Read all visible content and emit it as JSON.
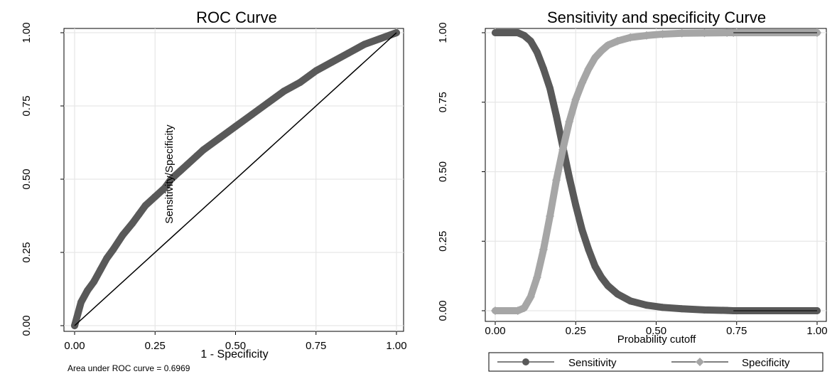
{
  "chart_data": [
    {
      "type": "line",
      "title": "ROC Curve",
      "xlabel": "1 - Specificity",
      "ylabel": "",
      "xlim": [
        0,
        1
      ],
      "ylim": [
        0,
        1
      ],
      "xticks": [
        "0.00",
        "0.25",
        "0.50",
        "0.75",
        "1.00"
      ],
      "yticks": [
        "0.00",
        "0.25",
        "0.50",
        "0.75",
        "1.00"
      ],
      "grid": true,
      "annotations": [
        "Sensitivity/Specificity",
        "Area under ROC curve = 0.6969"
      ],
      "series": [
        {
          "color": "#595959",
          "marker": "circle",
          "x": [
            0.0,
            0.01,
            0.02,
            0.04,
            0.06,
            0.08,
            0.1,
            0.12,
            0.15,
            0.18,
            0.2,
            0.22,
            0.25,
            0.28,
            0.3,
            0.33,
            0.35,
            0.38,
            0.4,
            0.45,
            0.5,
            0.55,
            0.6,
            0.65,
            0.7,
            0.75,
            0.8,
            0.85,
            0.9,
            0.95,
            1.0
          ],
          "y": [
            0.0,
            0.04,
            0.08,
            0.12,
            0.15,
            0.19,
            0.23,
            0.26,
            0.31,
            0.35,
            0.38,
            0.41,
            0.44,
            0.47,
            0.5,
            0.53,
            0.55,
            0.58,
            0.6,
            0.64,
            0.68,
            0.72,
            0.76,
            0.8,
            0.83,
            0.87,
            0.9,
            0.93,
            0.96,
            0.98,
            1.0
          ]
        },
        {
          "color": "#000000",
          "marker": "none",
          "x": [
            0,
            1
          ],
          "y": [
            0,
            1
          ]
        }
      ]
    },
    {
      "type": "line",
      "title": "Sensitivity and specificity Curve",
      "xlabel": "Probability cutoff",
      "ylabel": "",
      "xlim": [
        0,
        1
      ],
      "ylim": [
        0,
        1
      ],
      "xticks": [
        "0.00",
        "0.25",
        "0.50",
        "0.75",
        "1.00"
      ],
      "yticks": [
        "0.00",
        "0.25",
        "0.50",
        "0.75",
        "1.00"
      ],
      "grid": true,
      "legend": "bottom",
      "series": [
        {
          "name": "Sensitivity",
          "color": "#595959",
          "marker": "circle",
          "x": [
            0.0,
            0.07,
            0.09,
            0.11,
            0.13,
            0.15,
            0.17,
            0.19,
            0.21,
            0.23,
            0.25,
            0.27,
            0.29,
            0.31,
            0.33,
            0.35,
            0.38,
            0.42,
            0.47,
            0.52,
            0.58,
            0.65,
            0.72,
            0.74,
            1.0
          ],
          "y": [
            1.0,
            1.0,
            0.99,
            0.97,
            0.93,
            0.87,
            0.8,
            0.7,
            0.59,
            0.48,
            0.38,
            0.29,
            0.22,
            0.16,
            0.12,
            0.09,
            0.06,
            0.035,
            0.02,
            0.012,
            0.007,
            0.003,
            0.001,
            0.0,
            0.0
          ]
        },
        {
          "name": "Specificity",
          "color": "#a6a6a6",
          "marker": "diamond",
          "x": [
            0.0,
            0.07,
            0.09,
            0.11,
            0.13,
            0.15,
            0.17,
            0.19,
            0.21,
            0.23,
            0.25,
            0.27,
            0.29,
            0.31,
            0.33,
            0.35,
            0.38,
            0.42,
            0.47,
            0.52,
            0.58,
            0.65,
            0.72,
            0.74,
            1.0
          ],
          "y": [
            0.0,
            0.0,
            0.01,
            0.05,
            0.12,
            0.22,
            0.34,
            0.47,
            0.58,
            0.68,
            0.76,
            0.82,
            0.87,
            0.91,
            0.935,
            0.955,
            0.97,
            0.983,
            0.99,
            0.995,
            0.998,
            0.999,
            1.0,
            1.0,
            1.0
          ]
        }
      ]
    }
  ]
}
